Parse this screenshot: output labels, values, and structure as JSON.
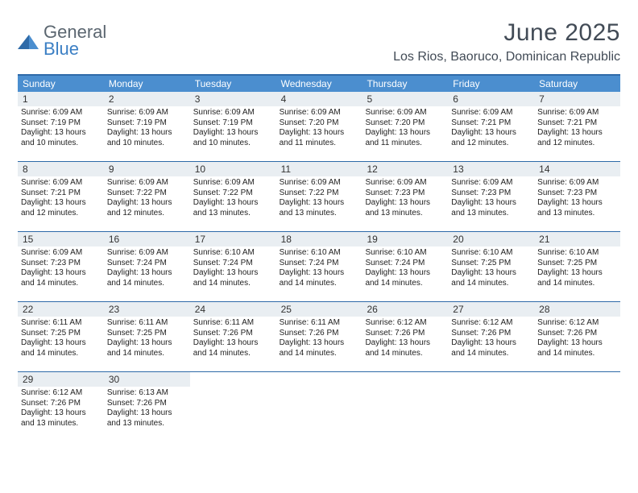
{
  "logo": {
    "line1": "General",
    "line2": "Blue"
  },
  "title": "June 2025",
  "location": "Los Rios, Baoruco, Dominican Republic",
  "colors": {
    "header_bg": "#4b8ecf",
    "border": "#2e6aa8",
    "daynum_bg": "#e9eef2",
    "title_color": "#424b56",
    "logo_gray": "#5b6670",
    "logo_blue": "#3b7fc4"
  },
  "day_headers": [
    "Sunday",
    "Monday",
    "Tuesday",
    "Wednesday",
    "Thursday",
    "Friday",
    "Saturday"
  ],
  "weeks": [
    [
      {
        "n": "1",
        "sr": "Sunrise: 6:09 AM",
        "ss": "Sunset: 7:19 PM",
        "d1": "Daylight: 13 hours",
        "d2": "and 10 minutes."
      },
      {
        "n": "2",
        "sr": "Sunrise: 6:09 AM",
        "ss": "Sunset: 7:19 PM",
        "d1": "Daylight: 13 hours",
        "d2": "and 10 minutes."
      },
      {
        "n": "3",
        "sr": "Sunrise: 6:09 AM",
        "ss": "Sunset: 7:19 PM",
        "d1": "Daylight: 13 hours",
        "d2": "and 10 minutes."
      },
      {
        "n": "4",
        "sr": "Sunrise: 6:09 AM",
        "ss": "Sunset: 7:20 PM",
        "d1": "Daylight: 13 hours",
        "d2": "and 11 minutes."
      },
      {
        "n": "5",
        "sr": "Sunrise: 6:09 AM",
        "ss": "Sunset: 7:20 PM",
        "d1": "Daylight: 13 hours",
        "d2": "and 11 minutes."
      },
      {
        "n": "6",
        "sr": "Sunrise: 6:09 AM",
        "ss": "Sunset: 7:21 PM",
        "d1": "Daylight: 13 hours",
        "d2": "and 12 minutes."
      },
      {
        "n": "7",
        "sr": "Sunrise: 6:09 AM",
        "ss": "Sunset: 7:21 PM",
        "d1": "Daylight: 13 hours",
        "d2": "and 12 minutes."
      }
    ],
    [
      {
        "n": "8",
        "sr": "Sunrise: 6:09 AM",
        "ss": "Sunset: 7:21 PM",
        "d1": "Daylight: 13 hours",
        "d2": "and 12 minutes."
      },
      {
        "n": "9",
        "sr": "Sunrise: 6:09 AM",
        "ss": "Sunset: 7:22 PM",
        "d1": "Daylight: 13 hours",
        "d2": "and 12 minutes."
      },
      {
        "n": "10",
        "sr": "Sunrise: 6:09 AM",
        "ss": "Sunset: 7:22 PM",
        "d1": "Daylight: 13 hours",
        "d2": "and 13 minutes."
      },
      {
        "n": "11",
        "sr": "Sunrise: 6:09 AM",
        "ss": "Sunset: 7:22 PM",
        "d1": "Daylight: 13 hours",
        "d2": "and 13 minutes."
      },
      {
        "n": "12",
        "sr": "Sunrise: 6:09 AM",
        "ss": "Sunset: 7:23 PM",
        "d1": "Daylight: 13 hours",
        "d2": "and 13 minutes."
      },
      {
        "n": "13",
        "sr": "Sunrise: 6:09 AM",
        "ss": "Sunset: 7:23 PM",
        "d1": "Daylight: 13 hours",
        "d2": "and 13 minutes."
      },
      {
        "n": "14",
        "sr": "Sunrise: 6:09 AM",
        "ss": "Sunset: 7:23 PM",
        "d1": "Daylight: 13 hours",
        "d2": "and 13 minutes."
      }
    ],
    [
      {
        "n": "15",
        "sr": "Sunrise: 6:09 AM",
        "ss": "Sunset: 7:23 PM",
        "d1": "Daylight: 13 hours",
        "d2": "and 14 minutes."
      },
      {
        "n": "16",
        "sr": "Sunrise: 6:09 AM",
        "ss": "Sunset: 7:24 PM",
        "d1": "Daylight: 13 hours",
        "d2": "and 14 minutes."
      },
      {
        "n": "17",
        "sr": "Sunrise: 6:10 AM",
        "ss": "Sunset: 7:24 PM",
        "d1": "Daylight: 13 hours",
        "d2": "and 14 minutes."
      },
      {
        "n": "18",
        "sr": "Sunrise: 6:10 AM",
        "ss": "Sunset: 7:24 PM",
        "d1": "Daylight: 13 hours",
        "d2": "and 14 minutes."
      },
      {
        "n": "19",
        "sr": "Sunrise: 6:10 AM",
        "ss": "Sunset: 7:24 PM",
        "d1": "Daylight: 13 hours",
        "d2": "and 14 minutes."
      },
      {
        "n": "20",
        "sr": "Sunrise: 6:10 AM",
        "ss": "Sunset: 7:25 PM",
        "d1": "Daylight: 13 hours",
        "d2": "and 14 minutes."
      },
      {
        "n": "21",
        "sr": "Sunrise: 6:10 AM",
        "ss": "Sunset: 7:25 PM",
        "d1": "Daylight: 13 hours",
        "d2": "and 14 minutes."
      }
    ],
    [
      {
        "n": "22",
        "sr": "Sunrise: 6:11 AM",
        "ss": "Sunset: 7:25 PM",
        "d1": "Daylight: 13 hours",
        "d2": "and 14 minutes."
      },
      {
        "n": "23",
        "sr": "Sunrise: 6:11 AM",
        "ss": "Sunset: 7:25 PM",
        "d1": "Daylight: 13 hours",
        "d2": "and 14 minutes."
      },
      {
        "n": "24",
        "sr": "Sunrise: 6:11 AM",
        "ss": "Sunset: 7:26 PM",
        "d1": "Daylight: 13 hours",
        "d2": "and 14 minutes."
      },
      {
        "n": "25",
        "sr": "Sunrise: 6:11 AM",
        "ss": "Sunset: 7:26 PM",
        "d1": "Daylight: 13 hours",
        "d2": "and 14 minutes."
      },
      {
        "n": "26",
        "sr": "Sunrise: 6:12 AM",
        "ss": "Sunset: 7:26 PM",
        "d1": "Daylight: 13 hours",
        "d2": "and 14 minutes."
      },
      {
        "n": "27",
        "sr": "Sunrise: 6:12 AM",
        "ss": "Sunset: 7:26 PM",
        "d1": "Daylight: 13 hours",
        "d2": "and 14 minutes."
      },
      {
        "n": "28",
        "sr": "Sunrise: 6:12 AM",
        "ss": "Sunset: 7:26 PM",
        "d1": "Daylight: 13 hours",
        "d2": "and 14 minutes."
      }
    ],
    [
      {
        "n": "29",
        "sr": "Sunrise: 6:12 AM",
        "ss": "Sunset: 7:26 PM",
        "d1": "Daylight: 13 hours",
        "d2": "and 13 minutes."
      },
      {
        "n": "30",
        "sr": "Sunrise: 6:13 AM",
        "ss": "Sunset: 7:26 PM",
        "d1": "Daylight: 13 hours",
        "d2": "and 13 minutes."
      },
      null,
      null,
      null,
      null,
      null
    ]
  ]
}
